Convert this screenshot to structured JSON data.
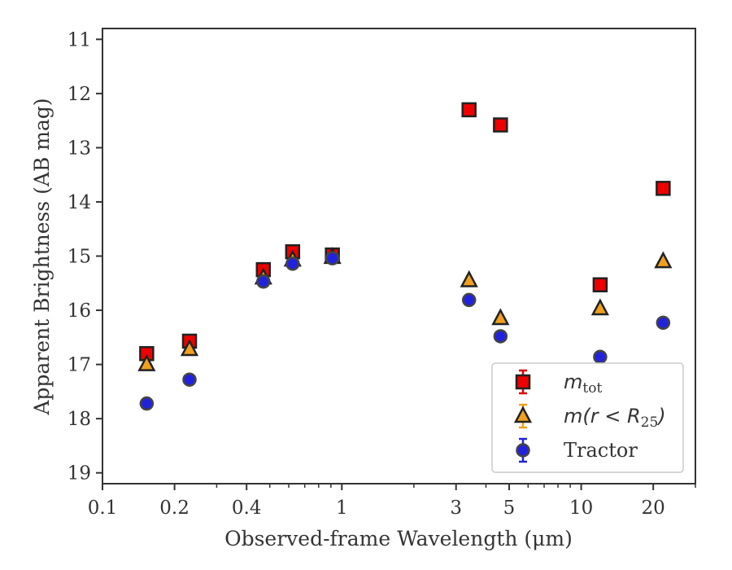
{
  "chart_data": {
    "type": "scatter",
    "xlabel": "Observed-frame Wavelength (μm)",
    "ylabel": "Apparent Brightness (AB mag)",
    "xscale": "log",
    "xlim": [
      0.1,
      30
    ],
    "ylim": [
      19.2,
      10.8
    ],
    "y_inverted": true,
    "x_tick_labels": [
      "0.1",
      "0.2",
      "0.4",
      "1",
      "3",
      "5",
      "10",
      "20"
    ],
    "x_ticks": [
      0.1,
      0.2,
      0.4,
      1,
      3,
      5,
      10,
      20
    ],
    "y_ticks": [
      11,
      12,
      13,
      14,
      15,
      16,
      17,
      18,
      19
    ],
    "legend_position": "lower-right",
    "series": [
      {
        "name": "m_tot",
        "legend_label": "m",
        "legend_sub": "tot",
        "marker": "square",
        "color": "#ee0000",
        "errbar_color": "#dd0000",
        "points": [
          {
            "x": 0.153,
            "y": 16.8
          },
          {
            "x": 0.231,
            "y": 16.57
          },
          {
            "x": 0.47,
            "y": 15.25
          },
          {
            "x": 0.623,
            "y": 14.92
          },
          {
            "x": 0.913,
            "y": 14.98
          },
          {
            "x": 3.4,
            "y": 12.3
          },
          {
            "x": 4.6,
            "y": 12.58
          },
          {
            "x": 12.0,
            "y": 15.53
          },
          {
            "x": 22.0,
            "y": 13.75
          }
        ]
      },
      {
        "name": "m(r<R25)",
        "legend_label": "m(r < R",
        "legend_sub": "25",
        "legend_suffix": ")",
        "marker": "triangle",
        "color": "#f0a01e",
        "errbar_color": "#f0a01e",
        "points": [
          {
            "x": 0.153,
            "y": 17.0
          },
          {
            "x": 0.231,
            "y": 16.72
          },
          {
            "x": 0.47,
            "y": 15.4
          },
          {
            "x": 0.623,
            "y": 15.07
          },
          {
            "x": 0.913,
            "y": 15.02
          },
          {
            "x": 3.4,
            "y": 15.45
          },
          {
            "x": 4.6,
            "y": 16.15
          },
          {
            "x": 12.0,
            "y": 15.97
          },
          {
            "x": 22.0,
            "y": 15.1
          }
        ]
      },
      {
        "name": "Tractor",
        "legend_label": "Tractor",
        "marker": "circle",
        "color": "#2222dd",
        "errbar_color": "#2222dd",
        "points": [
          {
            "x": 0.153,
            "y": 17.72
          },
          {
            "x": 0.231,
            "y": 17.28
          },
          {
            "x": 0.47,
            "y": 15.47
          },
          {
            "x": 0.623,
            "y": 15.14
          },
          {
            "x": 0.913,
            "y": 15.04
          },
          {
            "x": 3.4,
            "y": 15.81
          },
          {
            "x": 4.6,
            "y": 16.48
          },
          {
            "x": 12.0,
            "y": 16.86
          },
          {
            "x": 22.0,
            "y": 16.23
          }
        ]
      }
    ]
  }
}
